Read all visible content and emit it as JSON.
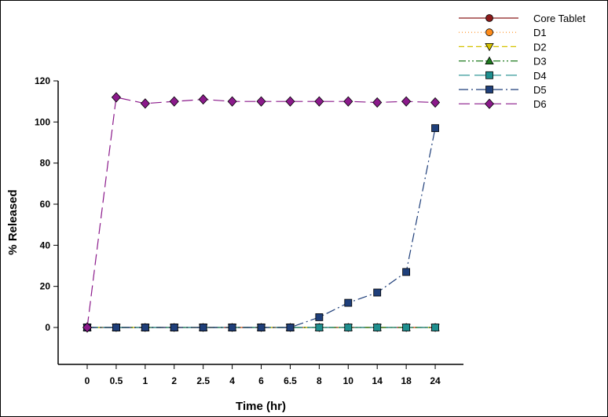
{
  "chart_data": {
    "type": "line",
    "title": "",
    "xlabel": "Time (hr)",
    "ylabel": "% Released",
    "x": [
      "0",
      "0.5",
      "1",
      "2",
      "2.5",
      "4",
      "6",
      "6.5",
      "8",
      "10",
      "14",
      "18",
      "24"
    ],
    "ylim": [
      -18,
      120
    ],
    "yticks": [
      0,
      20,
      40,
      60,
      80,
      100,
      120
    ],
    "grid": false,
    "legend_position": "top-right",
    "series": [
      {
        "name": "Core Tablet",
        "color": "#8b1a1a",
        "marker": "circle",
        "dash": "solid",
        "values": [
          0,
          0,
          0,
          0,
          0,
          0,
          0,
          0,
          0,
          0,
          0,
          0,
          0
        ]
      },
      {
        "name": "D1",
        "color": "#ff8c1a",
        "marker": "circle",
        "dash": "dot",
        "values": [
          0,
          0,
          0,
          0,
          0,
          0,
          0,
          0,
          0,
          0,
          0,
          0,
          0
        ]
      },
      {
        "name": "D2",
        "color": "#d4c200",
        "marker": "triangle-down",
        "dash": "dash",
        "values": [
          0,
          0,
          0,
          0,
          0,
          0,
          0,
          0,
          0,
          0,
          0,
          0,
          0
        ]
      },
      {
        "name": "D3",
        "color": "#1f7a1f",
        "marker": "triangle-up",
        "dash": "dashdotdot",
        "values": [
          0,
          0,
          0,
          0,
          0,
          0,
          0,
          0,
          0,
          0,
          0,
          0,
          0
        ]
      },
      {
        "name": "D4",
        "color": "#1f8f8f",
        "marker": "square",
        "dash": "longdash",
        "values": [
          0,
          0,
          0,
          0,
          0,
          0,
          0,
          0,
          0,
          0,
          0,
          0,
          0
        ]
      },
      {
        "name": "D5",
        "color": "#1f3f7a",
        "marker": "square",
        "dash": "dashdot",
        "values": [
          0,
          0,
          0,
          0,
          0,
          0,
          0,
          0,
          5,
          12,
          17,
          27,
          97
        ]
      },
      {
        "name": "D6",
        "color": "#8b1a8b",
        "marker": "diamond",
        "dash": "longdash",
        "values": [
          0,
          112,
          109,
          110,
          111,
          110,
          110,
          110,
          110,
          110,
          109.5,
          110,
          109.5
        ]
      }
    ]
  }
}
